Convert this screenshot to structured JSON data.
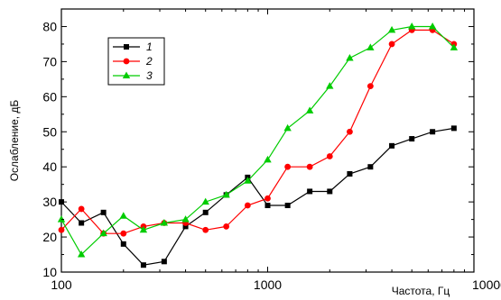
{
  "chart_data": {
    "type": "line",
    "title": "",
    "xlabel": "Частота, Гц",
    "ylabel": "Ослабление, дБ",
    "xscale": "log",
    "xlim": [
      100,
      10000
    ],
    "ylim": [
      10,
      85
    ],
    "x_ticks": [
      100,
      1000,
      10000
    ],
    "x_tick_labels": [
      "100",
      "1000",
      "10000"
    ],
    "y_ticks": [
      10,
      20,
      30,
      40,
      50,
      60,
      70,
      80
    ],
    "y_tick_labels": [
      "10",
      "20",
      "30",
      "40",
      "50",
      "60",
      "70",
      "80"
    ],
    "grid": false,
    "legend_position": "top-left",
    "x": [
      100,
      125,
      160,
      200,
      250,
      315,
      400,
      500,
      630,
      800,
      1000,
      1250,
      1600,
      2000,
      2500,
      3150,
      4000,
      5000,
      6300,
      8000
    ],
    "series": [
      {
        "name": "1",
        "color": "#000000",
        "marker": "square",
        "values": [
          30,
          24,
          27,
          18,
          12,
          13,
          23,
          27,
          32,
          37,
          29,
          29,
          33,
          33,
          38,
          40,
          46,
          48,
          50,
          51
        ]
      },
      {
        "name": "2",
        "color": "#ff0000",
        "marker": "circle",
        "values": [
          22,
          28,
          21,
          21,
          23,
          24,
          24,
          22,
          23,
          29,
          31,
          40,
          40,
          43,
          50,
          63,
          75,
          79,
          79,
          75
        ]
      },
      {
        "name": "3",
        "color": "#00cc00",
        "marker": "triangle",
        "values": [
          25,
          15,
          21,
          26,
          22,
          24,
          25,
          30,
          32,
          36,
          42,
          51,
          56,
          63,
          71,
          74,
          79,
          80,
          80,
          74
        ]
      }
    ]
  }
}
